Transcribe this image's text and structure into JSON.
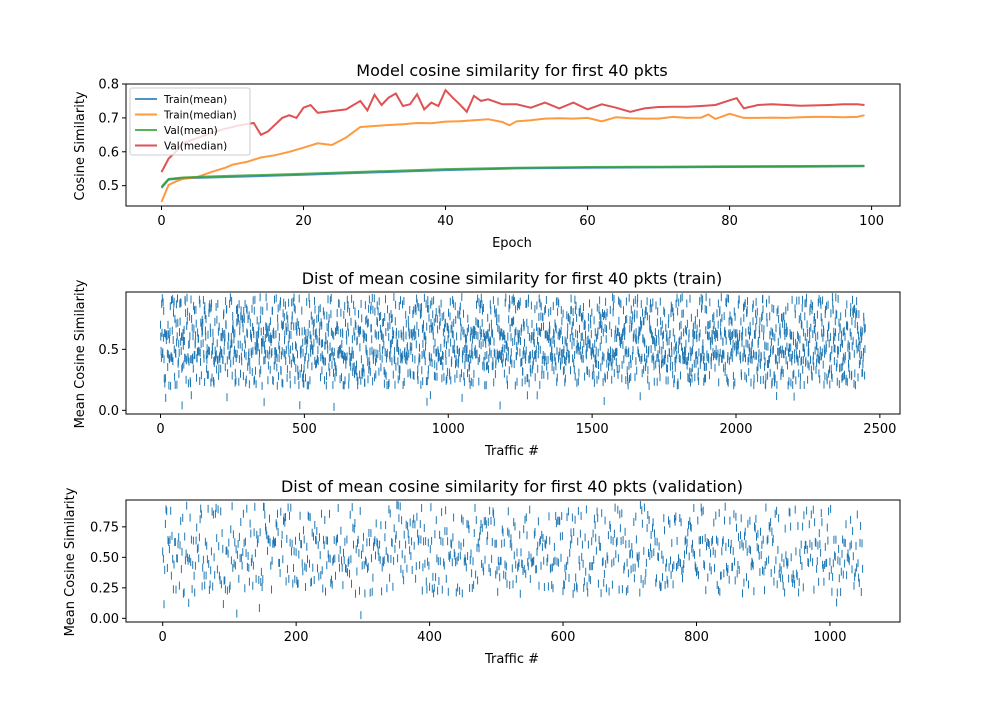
{
  "chart_data": [
    {
      "type": "line",
      "title": "Model cosine similarity for first 40 pkts",
      "xlabel": "Epoch",
      "ylabel": "Cosine Similarity",
      "xlim": [
        -5,
        104
      ],
      "ylim": [
        0.44,
        0.8
      ],
      "xticks": [
        0,
        20,
        40,
        60,
        80,
        100
      ],
      "yticks": [
        0.5,
        0.6,
        0.7,
        0.8
      ],
      "legend": "top-left",
      "series": [
        {
          "name": "Train(mean)",
          "color": "#1f77b4",
          "x": [
            0,
            1,
            3,
            5,
            10,
            20,
            30,
            40,
            50,
            60,
            70,
            80,
            90,
            99
          ],
          "y": [
            0.493,
            0.518,
            0.522,
            0.523,
            0.526,
            0.532,
            0.539,
            0.546,
            0.551,
            0.553,
            0.554,
            0.555,
            0.556,
            0.557
          ]
        },
        {
          "name": "Train(median)",
          "color": "#ff7f0e",
          "x": [
            0,
            1,
            2,
            3,
            5,
            7,
            9,
            10,
            12,
            14,
            16,
            18,
            20,
            22,
            24,
            26,
            28,
            30,
            32,
            34,
            36,
            38,
            40,
            42,
            44,
            46,
            48,
            49,
            50,
            52,
            54,
            56,
            58,
            60,
            62,
            64,
            66,
            68,
            70,
            72,
            74,
            76,
            77,
            78,
            80,
            82,
            84,
            86,
            88,
            90,
            92,
            94,
            96,
            98,
            99
          ],
          "y": [
            0.452,
            0.502,
            0.512,
            0.52,
            0.525,
            0.54,
            0.553,
            0.562,
            0.57,
            0.583,
            0.59,
            0.6,
            0.612,
            0.625,
            0.62,
            0.642,
            0.673,
            0.676,
            0.679,
            0.681,
            0.685,
            0.684,
            0.689,
            0.69,
            0.693,
            0.696,
            0.688,
            0.678,
            0.69,
            0.693,
            0.698,
            0.699,
            0.698,
            0.7,
            0.69,
            0.702,
            0.699,
            0.698,
            0.698,
            0.703,
            0.7,
            0.701,
            0.71,
            0.697,
            0.712,
            0.7,
            0.7,
            0.701,
            0.7,
            0.702,
            0.703,
            0.703,
            0.702,
            0.703,
            0.708
          ]
        },
        {
          "name": "Val(mean)",
          "color": "#2ca02c",
          "x": [
            0,
            1,
            3,
            5,
            10,
            20,
            30,
            40,
            50,
            60,
            70,
            80,
            90,
            99
          ],
          "y": [
            0.497,
            0.52,
            0.524,
            0.526,
            0.529,
            0.535,
            0.542,
            0.549,
            0.553,
            0.555,
            0.556,
            0.557,
            0.558,
            0.559
          ]
        },
        {
          "name": "Val(median)",
          "color": "#d62728",
          "x": [
            0,
            1,
            2,
            3,
            5,
            7,
            9,
            11,
            13,
            14,
            15,
            17,
            18,
            19,
            20,
            21,
            22,
            24,
            26,
            28,
            29,
            30,
            31,
            32,
            33,
            34,
            35,
            36,
            37,
            38,
            39,
            40,
            41,
            42,
            43,
            44,
            45,
            46,
            48,
            50,
            52,
            54,
            56,
            58,
            60,
            62,
            64,
            66,
            68,
            70,
            72,
            74,
            76,
            78,
            80,
            81,
            82,
            84,
            86,
            88,
            90,
            92,
            94,
            96,
            98,
            99
          ],
          "y": [
            0.54,
            0.58,
            0.6,
            0.625,
            0.64,
            0.655,
            0.668,
            0.678,
            0.685,
            0.65,
            0.66,
            0.7,
            0.708,
            0.7,
            0.73,
            0.738,
            0.715,
            0.72,
            0.725,
            0.75,
            0.722,
            0.768,
            0.738,
            0.76,
            0.772,
            0.735,
            0.74,
            0.77,
            0.725,
            0.745,
            0.735,
            0.782,
            0.76,
            0.74,
            0.718,
            0.765,
            0.75,
            0.755,
            0.74,
            0.74,
            0.73,
            0.745,
            0.728,
            0.745,
            0.725,
            0.74,
            0.73,
            0.718,
            0.728,
            0.732,
            0.733,
            0.733,
            0.735,
            0.738,
            0.752,
            0.758,
            0.728,
            0.738,
            0.74,
            0.738,
            0.736,
            0.737,
            0.738,
            0.74,
            0.74,
            0.738
          ]
        }
      ]
    },
    {
      "type": "scatter",
      "marker": "vertical-tick",
      "title": "Dist of mean cosine similarity for first 40 pkts (train)",
      "xlabel": "Traffic #",
      "ylabel": "Mean Cosine Similarity",
      "xlim": [
        -120,
        2570
      ],
      "ylim": [
        -0.03,
        0.97
      ],
      "xticks": [
        0,
        500,
        1000,
        1500,
        2000,
        2500
      ],
      "yticks": [
        0.0,
        0.5
      ],
      "ytick_labels": [
        "0.0",
        "0.5"
      ],
      "count": 2450,
      "value_range": [
        0.02,
        0.93
      ],
      "color": "#1f77b4"
    },
    {
      "type": "scatter",
      "marker": "vertical-tick",
      "title": "Dist of mean cosine similarity for first 40 pkts (validation)",
      "xlabel": "Traffic #",
      "ylabel": "Mean Cosine Similarity",
      "xlim": [
        -55,
        1105
      ],
      "ylim": [
        -0.03,
        0.97
      ],
      "xticks": [
        0,
        200,
        400,
        600,
        800,
        1000
      ],
      "yticks": [
        0.0,
        0.25,
        0.5,
        0.75
      ],
      "ytick_labels": [
        "0.00",
        "0.25",
        "0.50",
        "0.75"
      ],
      "count": 1050,
      "value_range": [
        0.02,
        0.93
      ],
      "color": "#1f77b4"
    }
  ]
}
